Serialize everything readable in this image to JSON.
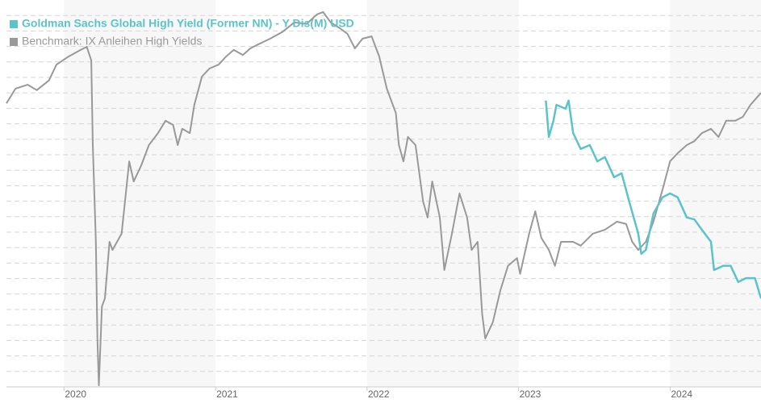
{
  "chart_data": {
    "type": "line",
    "xlim": [
      2019.62,
      2024.6
    ],
    "xticks": [
      2020,
      2021,
      2022,
      2023,
      2024
    ],
    "ylim": [
      0,
      100
    ],
    "yticks": [
      4,
      8,
      12,
      16,
      20,
      24,
      28,
      32,
      36,
      40,
      44,
      48,
      52,
      56,
      60,
      64,
      68,
      72,
      76,
      80,
      84,
      88,
      92,
      96
    ],
    "grid": true,
    "legend": "top-left",
    "series": [
      {
        "name": "Goldman Sachs Global High Yield (Former NN) - Y Dis(M) USD",
        "color": "#5bc4c9",
        "x": [
          2023.18,
          2023.2,
          2023.23,
          2023.25,
          2023.31,
          2023.33,
          2023.36,
          2023.41,
          2023.47,
          2023.52,
          2023.57,
          2023.63,
          2023.68,
          2023.73,
          2023.79,
          2023.81,
          2023.84,
          2023.89,
          2023.95,
          2024.0,
          2024.05,
          2024.11,
          2024.16,
          2024.21,
          2024.27,
          2024.29,
          2024.35,
          2024.4,
          2024.45,
          2024.5,
          2024.56,
          2024.6
        ],
        "values": [
          74.0,
          64.6,
          68.8,
          72.9,
          71.9,
          74.0,
          65.6,
          61.5,
          62.5,
          58.3,
          59.4,
          54.2,
          55.2,
          47.9,
          39.6,
          34.4,
          35.4,
          44.8,
          49.0,
          50.0,
          49.0,
          43.8,
          43.3,
          40.6,
          37.5,
          30.2,
          31.3,
          31.3,
          27.1,
          28.1,
          28.1,
          22.9
        ]
      },
      {
        "name": "Benchmark: IX Anleihen High Yields",
        "color": "#999999",
        "x": [
          2019.62,
          2019.68,
          2019.76,
          2019.82,
          2019.9,
          2019.95,
          2020.03,
          2020.11,
          2020.15,
          2020.18,
          2020.19,
          2020.21,
          2020.22,
          2020.23,
          2020.25,
          2020.27,
          2020.3,
          2020.32,
          2020.38,
          2020.43,
          2020.46,
          2020.51,
          2020.56,
          2020.62,
          2020.67,
          2020.72,
          2020.75,
          2020.78,
          2020.83,
          2020.86,
          2020.91,
          2020.96,
          2021.02,
          2021.07,
          2021.12,
          2021.18,
          2021.23,
          2021.28,
          2021.36,
          2021.44,
          2021.52,
          2021.6,
          2021.67,
          2021.71,
          2021.76,
          2021.82,
          2021.87,
          2021.92,
          2021.97,
          2022.03,
          2022.08,
          2022.13,
          2022.19,
          2022.21,
          2022.24,
          2022.27,
          2022.32,
          2022.37,
          2022.4,
          2022.43,
          2022.48,
          2022.51,
          2022.56,
          2022.61,
          2022.66,
          2022.69,
          2022.73,
          2022.76,
          2022.78,
          2022.83,
          2022.88,
          2022.93,
          2022.99,
          2023.01,
          2023.07,
          2023.11,
          2023.15,
          2023.2,
          2023.24,
          2023.28,
          2023.36,
          2023.41,
          2023.49,
          2023.57,
          2023.65,
          2023.71,
          2023.75,
          2023.79,
          2023.84,
          2023.89,
          2023.95,
          2024.0,
          2024.05,
          2024.11,
          2024.16,
          2024.21,
          2024.27,
          2024.32,
          2024.37,
          2024.43,
          2024.48,
          2024.53,
          2024.6
        ],
        "values": [
          73.3,
          77.1,
          78.1,
          76.7,
          79.2,
          83.3,
          85.4,
          87.1,
          87.9,
          84.4,
          62.5,
          37.5,
          12.5,
          0.4,
          20.8,
          22.9,
          37.5,
          35.4,
          39.6,
          58.3,
          53.1,
          57.3,
          62.5,
          65.6,
          68.8,
          67.7,
          62.5,
          66.7,
          65.6,
          72.9,
          80.2,
          82.3,
          83.3,
          85.4,
          87.1,
          85.8,
          87.5,
          88.5,
          90.0,
          91.7,
          94.2,
          93.8,
          96.3,
          96.9,
          94.2,
          92.7,
          91.3,
          87.5,
          90.0,
          90.6,
          85.4,
          77.1,
          70.8,
          62.5,
          58.3,
          64.6,
          62.5,
          47.9,
          43.8,
          53.1,
          43.8,
          30.2,
          39.6,
          50.0,
          43.8,
          35.4,
          37.5,
          18.8,
          12.5,
          16.7,
          25.0,
          31.3,
          33.3,
          29.2,
          39.6,
          45.4,
          38.5,
          35.4,
          31.3,
          37.5,
          37.5,
          36.5,
          39.6,
          40.6,
          42.7,
          42.1,
          37.5,
          35.4,
          37.5,
          42.7,
          51.0,
          58.3,
          60.4,
          62.5,
          63.5,
          65.6,
          66.7,
          64.6,
          68.8,
          68.8,
          69.8,
          72.9,
          76.0
        ]
      }
    ]
  }
}
